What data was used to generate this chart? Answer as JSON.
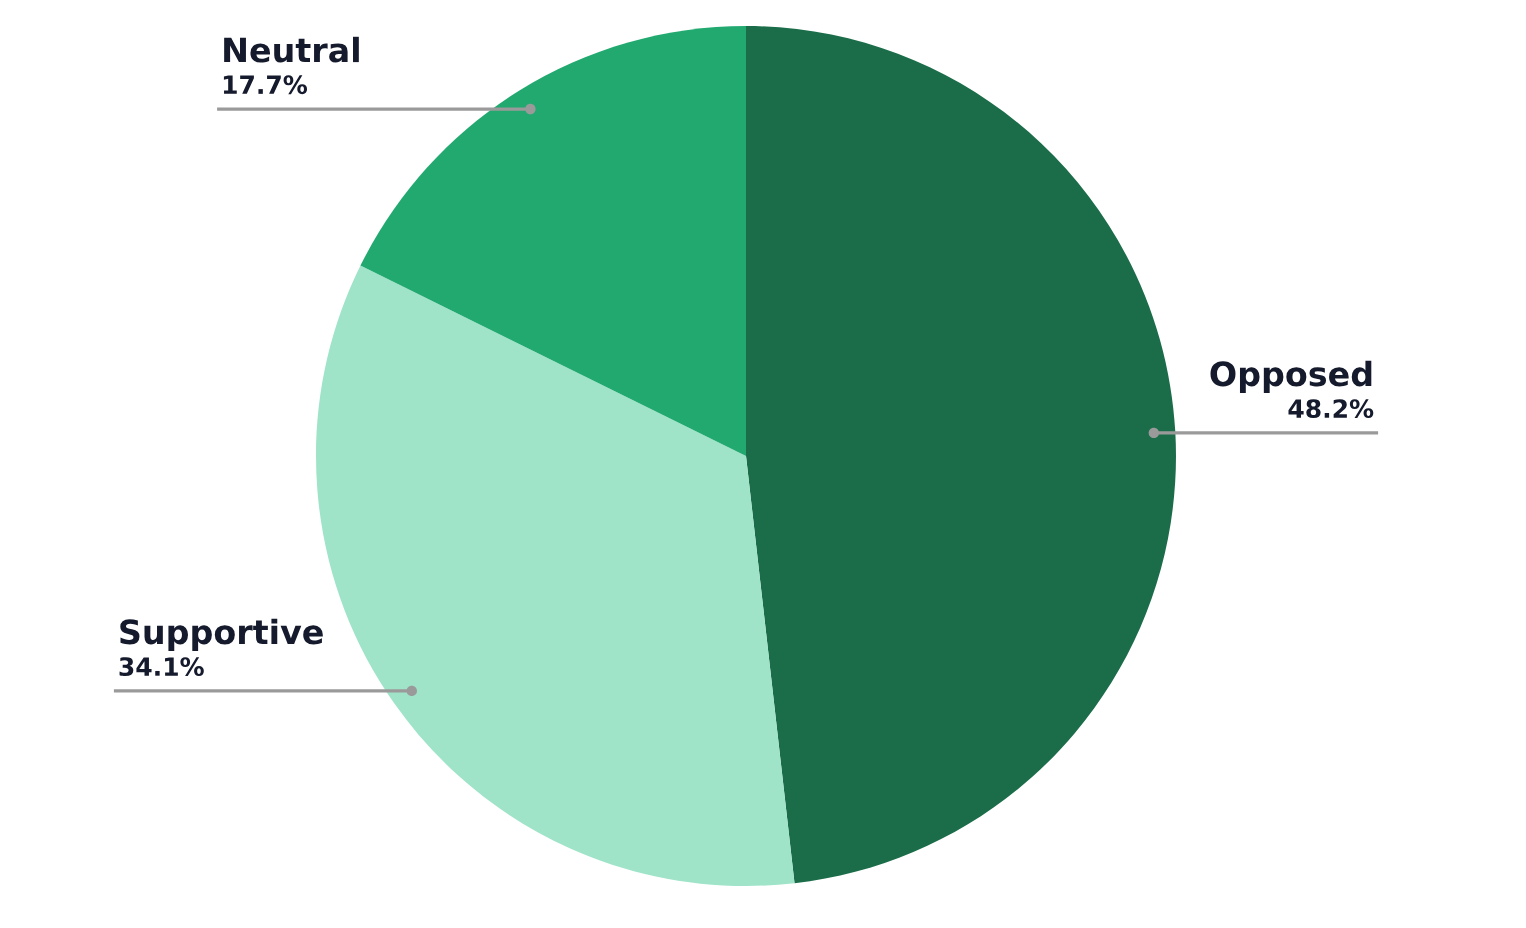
{
  "chart_data": {
    "type": "pie",
    "categories": [
      "Opposed",
      "Supportive",
      "Neutral"
    ],
    "values": [
      48.2,
      34.1,
      17.7
    ],
    "colors": [
      "#1b6d4a",
      "#9fe4c9",
      "#21a96f"
    ],
    "value_labels": [
      "48.2%",
      "34.1%",
      "17.7%"
    ]
  }
}
